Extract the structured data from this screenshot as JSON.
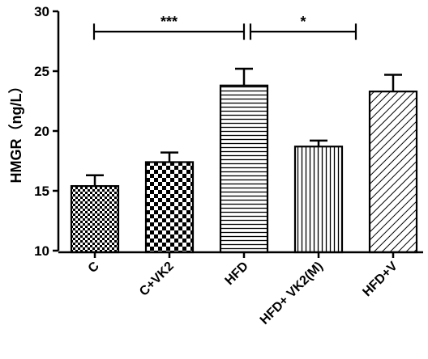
{
  "chart_data": {
    "type": "bar",
    "categories": [
      "C",
      "C+VK2",
      "HFD",
      "HFD+ VK2(M)",
      "HFD+V"
    ],
    "values": [
      15.4,
      17.4,
      23.8,
      18.7,
      23.3
    ],
    "errors": [
      0.9,
      0.8,
      1.4,
      0.5,
      1.4
    ],
    "patterns": [
      "checker-fine",
      "checker-coarse",
      "horizontal-lines",
      "vertical-lines",
      "diagonal-lines"
    ],
    "ylabel": "HMGR（ng/L）",
    "ylim": [
      10,
      30
    ],
    "yticks": [
      10,
      15,
      20,
      25,
      30
    ],
    "significance": [
      {
        "from": 0,
        "to": 2,
        "label": "***",
        "y": 28.3
      },
      {
        "from": 2,
        "to": 3,
        "label": "*",
        "y": 28.3
      }
    ],
    "colors": {
      "bar_stroke": "#000000",
      "pattern": "#000000",
      "background": "#ffffff"
    }
  }
}
